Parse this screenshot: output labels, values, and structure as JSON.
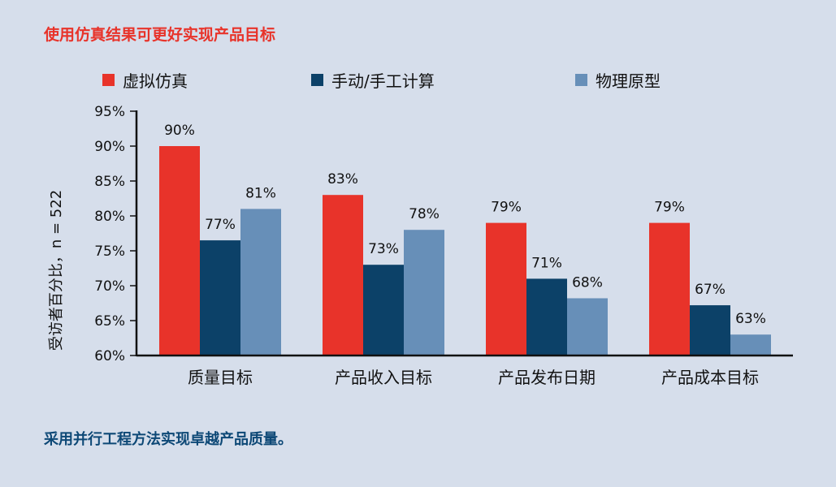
{
  "header": {
    "title": "使用仿真结果可更好实现产品目标"
  },
  "footer": {
    "text": "采用并行工程方法实现卓越产品质量。"
  },
  "colors": {
    "background": "#d6deeb",
    "title": "#e8332a",
    "footer": "#0d4876"
  },
  "chart_data": {
    "type": "bar",
    "title": "",
    "xlabel": "",
    "ylabel": "受访者百分比，n = 522",
    "ylim": [
      60,
      95
    ],
    "yticks": [
      "60%",
      "65%",
      "70%",
      "75%",
      "80%",
      "85%",
      "90%",
      "95%"
    ],
    "categories": [
      "质量目标",
      "产品收入目标",
      "产品发布日期",
      "产品成本目标"
    ],
    "series": [
      {
        "name": "虚拟仿真",
        "color": "#e8332a",
        "values": [
          90,
          83,
          79,
          79
        ],
        "labels": [
          "90%",
          "83%",
          "79%",
          "79%"
        ]
      },
      {
        "name": "手动/手工计算",
        "color": "#0c4168",
        "values": [
          76.5,
          73,
          71,
          67.2
        ],
        "labels": [
          "77%",
          "73%",
          "71%",
          "67%"
        ]
      },
      {
        "name": "物理原型",
        "color": "#678fb8",
        "values": [
          81,
          78,
          68.2,
          63
        ],
        "labels": [
          "81%",
          "78%",
          "68%",
          "63%"
        ]
      }
    ],
    "grid": false,
    "legend_position": "top"
  }
}
